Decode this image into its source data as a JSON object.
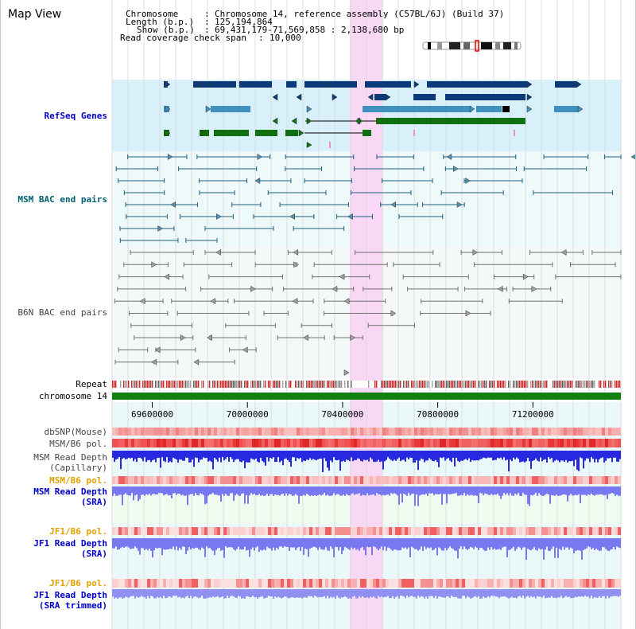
{
  "page": {
    "title": "Map View"
  },
  "info": {
    "chromosome_label": "Chromosome",
    "chromosome_value": "Chromosome 14, reference assembly (C57BL/6J) (Build 37)",
    "length_label": "Length (b.p.)",
    "length_value": "125,194,864",
    "show_label": "Show (b.p.)",
    "show_value": "69,431,179-71,569,858 : 2,138,680 bp",
    "span_label": "Read coverage check span",
    "span_value": "10,000"
  },
  "tracks": {
    "refseq": "RefSeq Genes",
    "msm_bac": "MSM BAC end pairs",
    "b6n_bac": "B6N BAC end pairs",
    "repeat": "Repeat",
    "chromosome": "chromosome 14",
    "dbsnp": "dbSNP(Mouse)",
    "msm_pol": "MSM/B6 pol.",
    "msm_depth_cap_1": "MSM Read Depth",
    "msm_depth_cap_2": "(Capillary)",
    "msm_pol_2": "MSM/B6 pol.",
    "msm_depth_sra_1": "MSM Read Depth",
    "msm_depth_sra_2": "(SRA)",
    "jf1_pol": "JF1/B6 pol.",
    "jf1_depth_sra_1": "JF1 Read Depth",
    "jf1_depth_sra_2": "(SRA)",
    "jf1_pol_2": "JF1/B6 pol.",
    "jf1_depth_trim_1": "JF1 Read Depth",
    "jf1_depth_trim_2": "(SRA trimmed)"
  },
  "axis": {
    "start_bp": 69431179,
    "end_bp": 71569858,
    "ticks": [
      69600000,
      70000000,
      70400000,
      70800000,
      71200000
    ],
    "tick_labels": [
      "69600000",
      "70000000",
      "70400000",
      "70800000",
      "71200000"
    ]
  },
  "highlight": {
    "start_bp": 70430000,
    "end_bp": 70570000
  },
  "colors": {
    "refseq_bg": "#d8f0fa",
    "bac_bg": "#eefafa",
    "highlight": "#f8d8f4",
    "refseq_dark": "#0c3a78",
    "refseq_mid": "#4090c0",
    "refseq_green": "#107010",
    "msm_line": "#206080",
    "b6n_line": "#707070",
    "chromosome": "#108010",
    "depth_capillary": "#2828e0",
    "depth_sra": "#7878f0",
    "depth_sra_trim": "#9090f0",
    "pol_red": "#e83838"
  }
}
